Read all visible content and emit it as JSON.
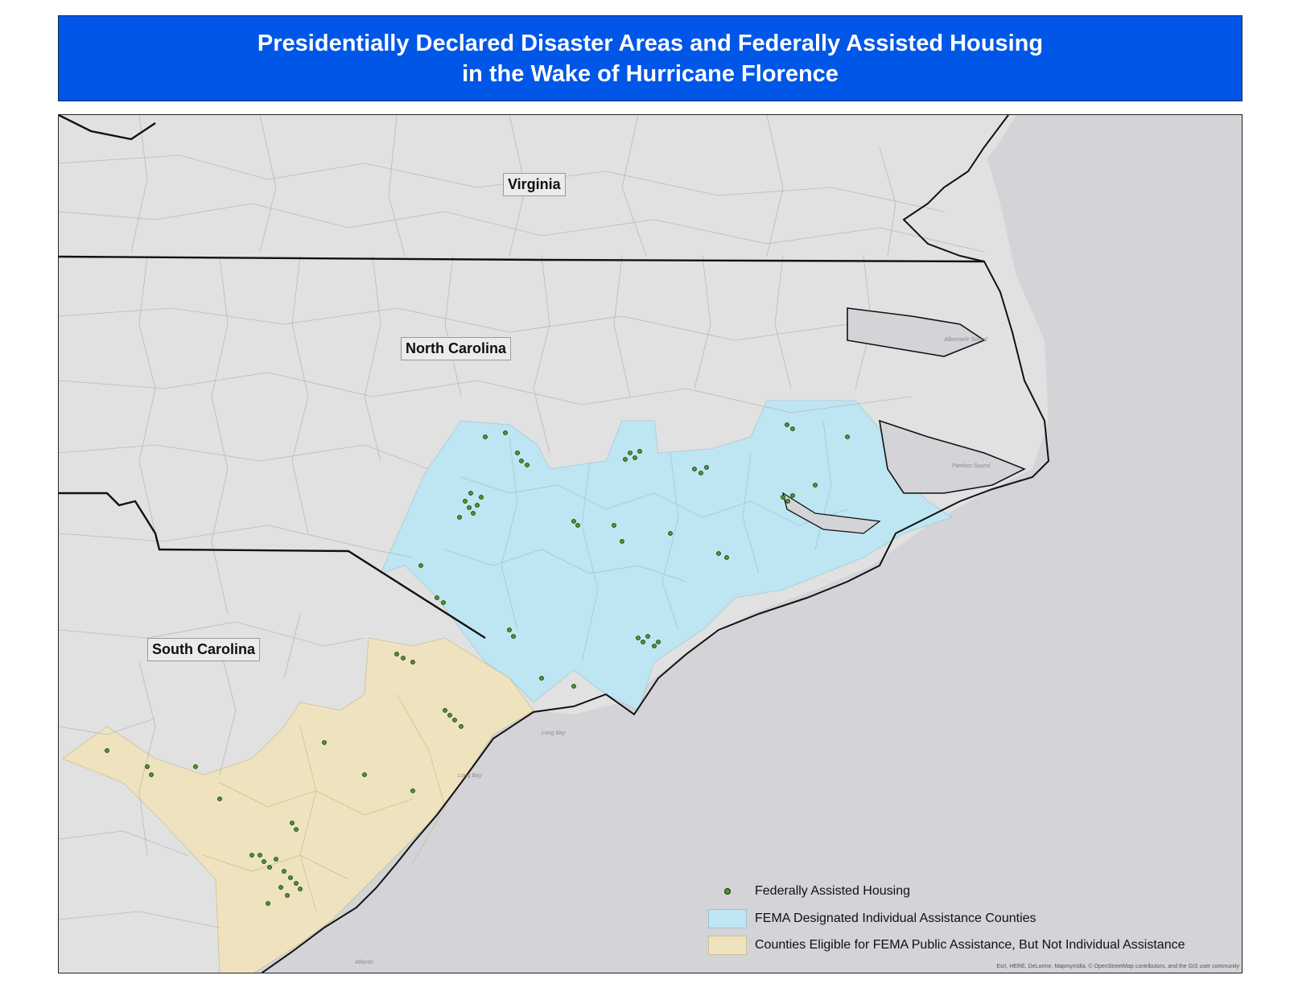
{
  "title": {
    "line1": "Presidentially Declared Disaster Areas and Federally Assisted Housing",
    "line2": "in the Wake of Hurricane Florence"
  },
  "states": {
    "virginia": "Virginia",
    "north_carolina": "North Carolina",
    "south_carolina": "South Carolina"
  },
  "water_labels": {
    "long_bay_1": "Long Bay",
    "long_bay_2": "Long Bay",
    "atlantic": "Atlantic",
    "pamlico_sound": "Pamlico Sound",
    "albemarle_sound": "Albemarle Sound"
  },
  "legend": {
    "housing": "Federally Assisted Housing",
    "individual": "FEMA Designated Individual Assistance Counties",
    "public": "Counties Eligible for FEMA Public Assistance, But Not Individual Assistance"
  },
  "credits": "Esri, HERE, DeLorme, MapmyIndia, © OpenStreetMap contributors, and the GIS user community",
  "colors": {
    "title_bg": "#0057e7",
    "land": "#e1e1e1",
    "water": "#d3d3d8",
    "individual_assistance": "#bde6f2",
    "public_assistance": "#efe3bf",
    "housing_dot": "#4c9a2a"
  }
}
